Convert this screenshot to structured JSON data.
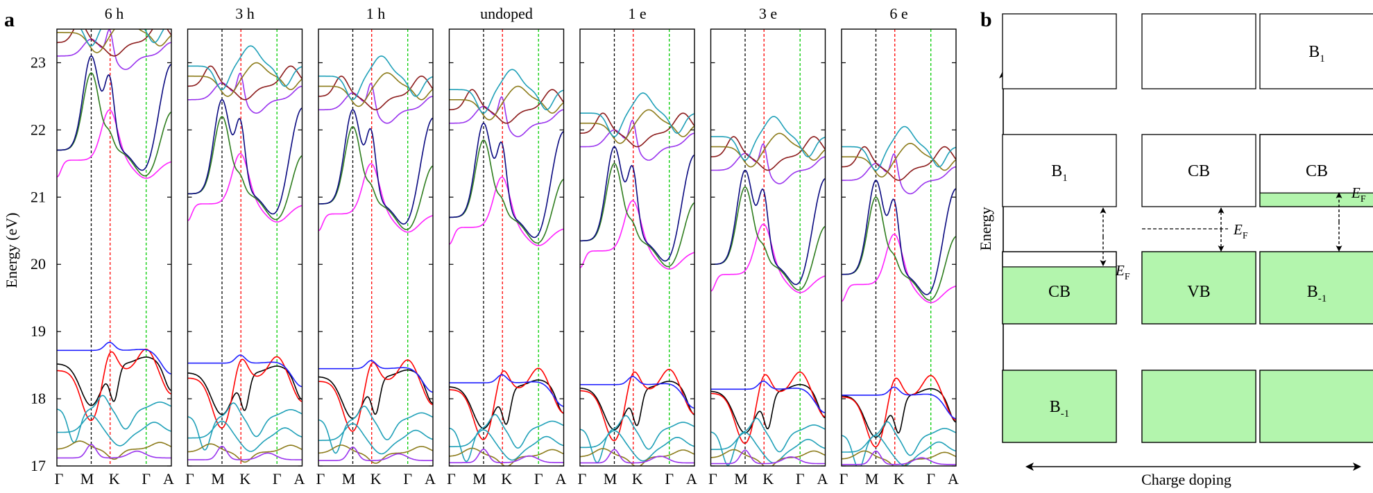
{
  "panel_a": {
    "letter": "a",
    "ylabel": "Energy (eV)",
    "ylim": [
      17,
      23.5
    ],
    "yticks": [
      "17",
      "18",
      "19",
      "20",
      "21",
      "22",
      "23"
    ],
    "xticks": [
      "Γ",
      "M",
      "K",
      "Γ",
      "A"
    ],
    "panels": [
      {
        "title": "6 h",
        "ev": 0.0,
        "cbm": 21.3
      },
      {
        "title": "3 h",
        "ev": 0.28,
        "cbm": 20.65
      },
      {
        "title": "1 h",
        "ev": 0.4,
        "cbm": 20.5
      },
      {
        "title": "undoped",
        "ev": 0.71,
        "cbm": 20.3
      },
      {
        "title": "1 e",
        "ev": 0.75,
        "cbm": 19.95
      },
      {
        "title": "3 e",
        "ev": 0.85,
        "cbm": 19.6
      },
      {
        "title": "6 e",
        "ev": 0.98,
        "cbm": 19.45
      }
    ]
  },
  "panel_b": {
    "letter": "b",
    "ylabel": "Energy",
    "xlabel": "Charge doping",
    "columns": [
      {
        "top": "",
        "mid": "B",
        "mid_sub": "1",
        "low": "CB",
        "low_sub": "",
        "bottom": "B",
        "bottom_sub": "-1",
        "ef_label": "E",
        "ef_sub": "F"
      },
      {
        "top": "",
        "mid": "CB",
        "mid_sub": "",
        "low": "VB",
        "low_sub": "",
        "bottom": "",
        "bottom_sub": "",
        "ef_label": "E",
        "ef_sub": "F"
      },
      {
        "top": "B",
        "top_sub": "1",
        "mid": "CB",
        "mid_sub": "",
        "low": "B",
        "low_sub": "-1",
        "bottom": "",
        "bottom_sub": "",
        "ef_label": "E",
        "ef_sub": "F"
      }
    ],
    "fill_color": "#b3f5ad"
  },
  "colors": {
    "vb_black": "#000000",
    "vb_red": "#ff0000",
    "vb_blue": "#1f1fff",
    "cb_magenta": "#ff22ff",
    "cb_green": "#2e7d1e",
    "cb_navy": "#0a0a80",
    "purple": "#9933ee",
    "teal": "#1fa0b8",
    "olive": "#8c7b1a",
    "maroon": "#8b1a1a",
    "kline": "#ff0000",
    "gline": "#00cc00",
    "mline": "#000000"
  }
}
